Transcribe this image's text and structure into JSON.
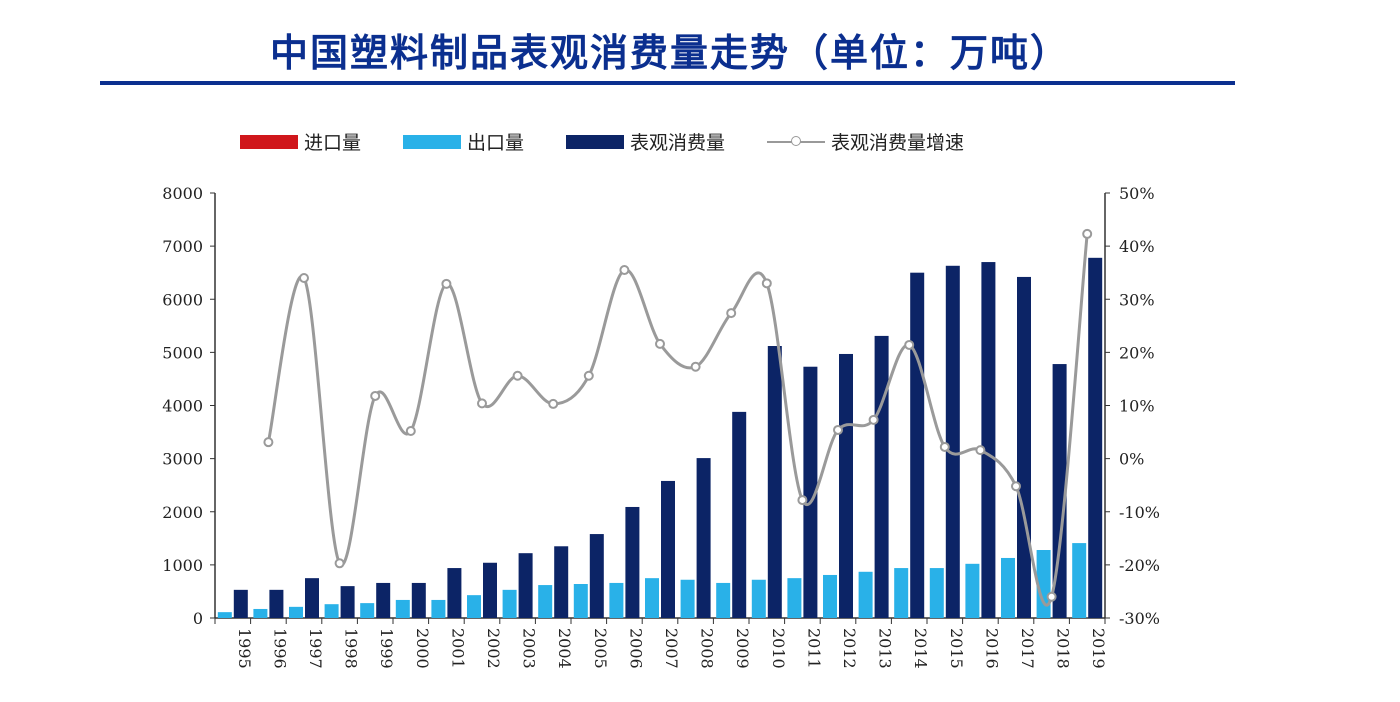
{
  "chart_data": {
    "type": "bar",
    "title": "中国塑料制品表观消费量走势（单位：万吨）",
    "categories": [
      "1995",
      "1996",
      "1997",
      "1998",
      "1999",
      "2000",
      "2001",
      "2002",
      "2003",
      "2004",
      "2005",
      "2006",
      "2007",
      "2008",
      "2009",
      "2010",
      "2011",
      "2012",
      "2013",
      "2014",
      "2015",
      "2016",
      "2017",
      "2018",
      "2019"
    ],
    "series": [
      {
        "name": "进口量",
        "type": "bar",
        "axis": "left",
        "color": "#d0161b",
        "values": [
          null,
          null,
          null,
          null,
          null,
          null,
          null,
          null,
          null,
          null,
          null,
          null,
          null,
          null,
          null,
          null,
          null,
          null,
          null,
          null,
          null,
          null,
          null,
          null,
          null
        ]
      },
      {
        "name": "出口量",
        "type": "bar",
        "axis": "left",
        "color": "#29b1e8",
        "values": [
          110,
          170,
          210,
          260,
          280,
          340,
          340,
          430,
          530,
          620,
          640,
          660,
          750,
          720,
          660,
          720,
          750,
          810,
          870,
          940,
          940,
          1020,
          1130,
          1280,
          1410
        ]
      },
      {
        "name": "表观消费量",
        "type": "bar",
        "axis": "left",
        "color": "#0c2466",
        "values": [
          530,
          530,
          750,
          600,
          660,
          660,
          940,
          1040,
          1220,
          1350,
          1580,
          2090,
          2580,
          3010,
          3880,
          5120,
          4730,
          4970,
          5310,
          6500,
          6630,
          6700,
          6420,
          4780,
          6780
        ]
      },
      {
        "name": "表观消费量增速",
        "type": "line",
        "axis": "right",
        "color": "#9a9a9a",
        "values": [
          null,
          3.1,
          34,
          -19.7,
          11.8,
          5.2,
          32.9,
          10.4,
          15.6,
          10.3,
          15.6,
          35.5,
          21.6,
          17.3,
          27.4,
          33,
          -7.8,
          5.4,
          7.3,
          21.4,
          2.2,
          1.6,
          -5.2,
          -26,
          42.3
        ]
      }
    ],
    "yleft": {
      "ylim": [
        0,
        8000
      ],
      "ticks": [
        "0",
        "1000",
        "2000",
        "3000",
        "4000",
        "5000",
        "6000",
        "7000",
        "8000"
      ]
    },
    "yright": {
      "ylim": [
        -30,
        50
      ],
      "unit": "%",
      "ticks": [
        "-30%",
        "-20%",
        "-10%",
        "0%",
        "10%",
        "20%",
        "30%",
        "40%",
        "50%"
      ]
    },
    "grid": false,
    "legend": "top"
  }
}
